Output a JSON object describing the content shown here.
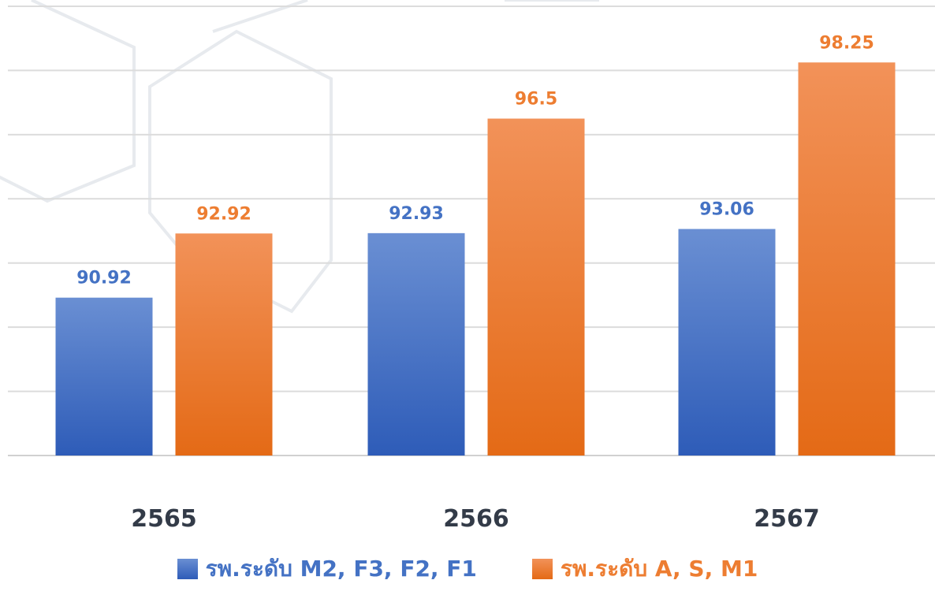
{
  "chart_data": {
    "type": "bar",
    "title": "",
    "xlabel": "",
    "ylabel": "",
    "categories": [
      "2565",
      "2566",
      "2567"
    ],
    "series": [
      {
        "name": "รพ.ระดับ M2, F3, F2, F1",
        "values": [
          90.92,
          92.93,
          93.06
        ],
        "color": "#4472C4",
        "labels": [
          "90.92",
          "92.93",
          "93.06"
        ]
      },
      {
        "name": "รพ.ระดับ A, S, M1",
        "values": [
          92.92,
          96.5,
          98.25
        ],
        "color": "#ED7D31",
        "labels": [
          "92.92",
          "96.5",
          "98.25"
        ]
      }
    ],
    "ylim": [
      86,
      100
    ],
    "grid": true,
    "legend_position": "bottom"
  }
}
